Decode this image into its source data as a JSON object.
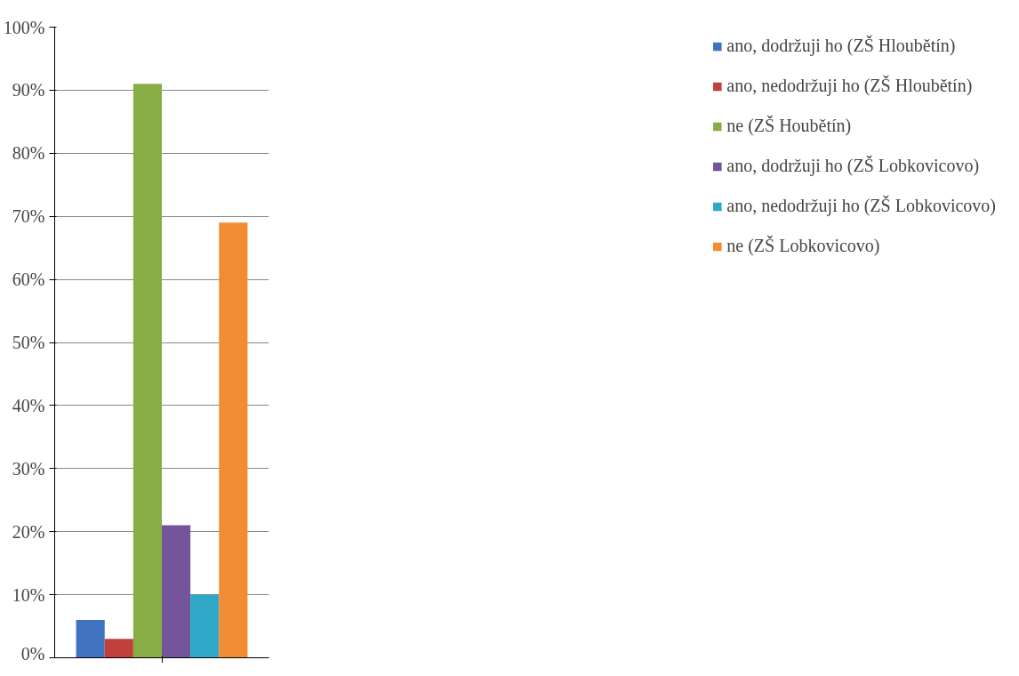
{
  "chart_data": {
    "type": "bar",
    "categories": [
      null
    ],
    "series": [
      {
        "name": "ano, dodržuji ho (ZŠ Hloubětín)",
        "color": "#3f72c0",
        "values": [
          6
        ]
      },
      {
        "name": "ano, nedodržuji ho (ZŠ Hloubětín)",
        "color": "#c0403a",
        "values": [
          3
        ]
      },
      {
        "name": "ne (ZŠ Houbětín)",
        "color": "#88ad45",
        "values": [
          91
        ]
      },
      {
        "name": "ano, dodržuji ho (ZŠ Lobkovicovo)",
        "color": "#74559c",
        "values": [
          21
        ]
      },
      {
        "name": "ano, nedodržuji ho (ZŠ Lobkovicovo)",
        "color": "#30a9c8",
        "values": [
          10
        ]
      },
      {
        "name": "ne (ZŠ Lobkovicovo)",
        "color": "#f28c32",
        "values": [
          69
        ]
      }
    ],
    "ylim": [
      0,
      100
    ],
    "yticks": [
      {
        "value": 0,
        "label": "0%"
      },
      {
        "value": 10,
        "label": "10%"
      },
      {
        "value": 20,
        "label": "20%"
      },
      {
        "value": 30,
        "label": "30%"
      },
      {
        "value": 40,
        "label": "40%"
      },
      {
        "value": 50,
        "label": "50%"
      },
      {
        "value": 60,
        "label": "60%"
      },
      {
        "value": 70,
        "label": "70%"
      },
      {
        "value": 80,
        "label": "80%"
      },
      {
        "value": 90,
        "label": "90%"
      },
      {
        "value": 100,
        "label": "100%"
      }
    ],
    "grid": "y",
    "legend": "right",
    "tick_labels": "y"
  }
}
